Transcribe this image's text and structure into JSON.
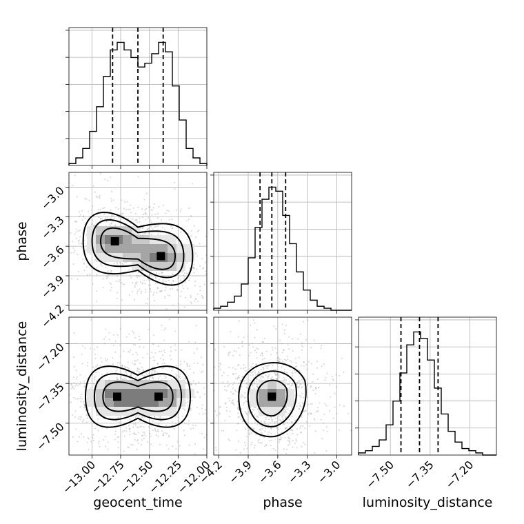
{
  "chart_data": {
    "type": "corner",
    "parameters": [
      "geocent_time",
      "phase",
      "luminosity_distance"
    ],
    "ranges": {
      "geocent_time": [
        -13.2,
        -12.0
      ],
      "phase": [
        -4.25,
        -2.85
      ],
      "luminosity_distance": [
        -7.62,
        -7.1
      ]
    },
    "ticks": {
      "geocent_time": [
        "−13.00",
        "−12.75",
        "−12.50",
        "−12.25",
        "−12.00"
      ],
      "geocent_time_values": [
        -13.0,
        -12.75,
        -12.5,
        -12.25,
        -12.0
      ],
      "phase": [
        "−4.2",
        "−3.9",
        "−3.6",
        "−3.3",
        "−3.0"
      ],
      "phase_values": [
        -4.2,
        -3.9,
        -3.6,
        -3.3,
        -3.0
      ],
      "luminosity_distance": [
        "−7.50",
        "−7.35",
        "−7.20"
      ],
      "luminosity_distance_values": [
        -7.5,
        -7.35,
        -7.2
      ]
    },
    "quantiles": {
      "geocent_time": [
        -12.82,
        -12.6,
        -12.38
      ],
      "phase": [
        -3.78,
        -3.66,
        -3.52
      ],
      "luminosity_distance": [
        -7.46,
        -7.39,
        -7.32
      ]
    },
    "histograms": {
      "geocent_time": {
        "bins": [
          -13.2,
          -13.14,
          -13.08,
          -13.02,
          -12.96,
          -12.9,
          -12.84,
          -12.78,
          -12.72,
          -12.66,
          -12.6,
          -12.54,
          -12.48,
          -12.42,
          -12.36,
          -12.3,
          -12.24,
          -12.18,
          -12.12,
          -12.06,
          -12.0
        ],
        "counts": [
          1,
          4,
          9,
          18,
          31,
          47,
          61,
          65,
          61,
          57,
          52,
          54,
          59,
          65,
          60,
          42,
          24,
          9,
          4,
          1
        ]
      },
      "phase": {
        "bins": [
          -4.25,
          -4.18,
          -4.11,
          -4.04,
          -3.97,
          -3.9,
          -3.83,
          -3.76,
          -3.69,
          -3.62,
          -3.55,
          -3.48,
          -3.41,
          -3.34,
          -3.27,
          -3.2,
          -3.13,
          -3.06,
          -2.99,
          -2.92,
          -2.85
        ],
        "counts": [
          1,
          2,
          4,
          7,
          13,
          26,
          41,
          55,
          61,
          59,
          47,
          33,
          19,
          10,
          5,
          2,
          1,
          0,
          0,
          0
        ]
      },
      "luminosity_distance": {
        "bins": [
          -7.62,
          -7.594,
          -7.568,
          -7.542,
          -7.516,
          -7.49,
          -7.464,
          -7.438,
          -7.412,
          -7.386,
          -7.36,
          -7.334,
          -7.308,
          -7.282,
          -7.256,
          -7.23,
          -7.204,
          -7.178,
          -7.152,
          -7.126,
          -7.1
        ],
        "counts": [
          1,
          2,
          4,
          7,
          14,
          25,
          38,
          51,
          57,
          54,
          44,
          31,
          19,
          11,
          6,
          3,
          2,
          1,
          0,
          0
        ]
      }
    },
    "density_peaks": {
      "geocent_time_phase": [
        [
          -12.8,
          -3.55
        ],
        [
          -12.4,
          -3.7
        ]
      ],
      "geocent_time_luminosity_distance": [
        [
          -12.78,
          -7.4
        ],
        [
          -12.42,
          -7.4
        ]
      ],
      "phase_luminosity_distance": [
        [
          -3.66,
          -7.4
        ]
      ]
    }
  }
}
